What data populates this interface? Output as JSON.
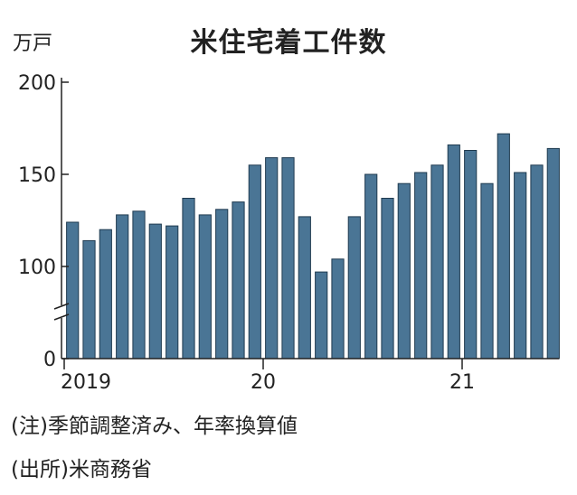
{
  "chart_data": {
    "type": "bar",
    "title": "米住宅着工件数",
    "unit": "万戸",
    "ylim": [
      0,
      200
    ],
    "yticks": [
      0,
      100,
      150,
      200
    ],
    "axis_break": true,
    "grid": false,
    "bar_color": "#4a7595",
    "x_tick_labels": [
      {
        "label": "2019",
        "index": 0
      },
      {
        "label": "20",
        "index": 12
      },
      {
        "label": "21",
        "index": 24
      }
    ],
    "categories": [
      "2019-01",
      "2019-02",
      "2019-03",
      "2019-04",
      "2019-05",
      "2019-06",
      "2019-07",
      "2019-08",
      "2019-09",
      "2019-10",
      "2019-11",
      "2019-12",
      "2020-01",
      "2020-02",
      "2020-03",
      "2020-04",
      "2020-05",
      "2020-06",
      "2020-07",
      "2020-08",
      "2020-09",
      "2020-10",
      "2020-11",
      "2020-12",
      "2021-01",
      "2021-02",
      "2021-03",
      "2021-04",
      "2021-05",
      "2021-06"
    ],
    "values": [
      124,
      114,
      120,
      128,
      130,
      123,
      122,
      137,
      128,
      131,
      135,
      155,
      159,
      159,
      127,
      94,
      104,
      127,
      150,
      137,
      145,
      151,
      155,
      166,
      163,
      145,
      172,
      151,
      155,
      164
    ]
  },
  "notes": {
    "note1": "(注)季節調整済み、年率換算値",
    "note2": "(出所)米商務省"
  }
}
